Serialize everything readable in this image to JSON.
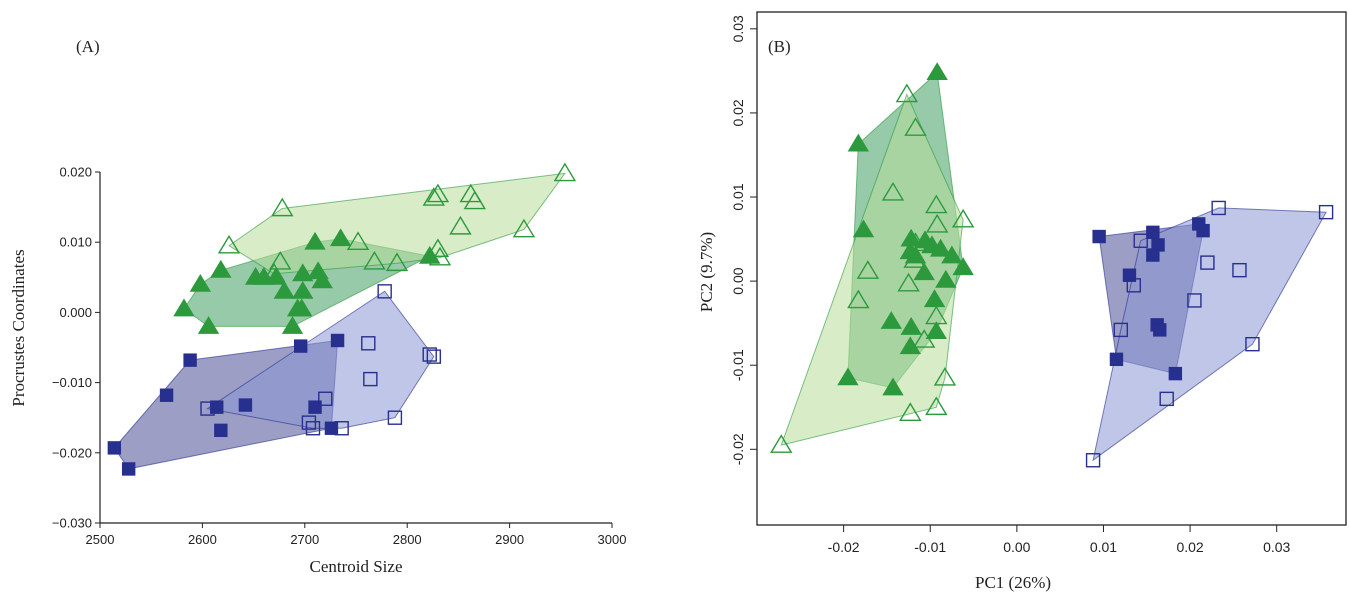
{
  "colors": {
    "green_fill_light": "#b8dc9a",
    "green_fill_dark": "#3f9f62",
    "green_marker": "#2c9a3c",
    "blue_fill_light": "#8b97d3",
    "blue_fill_dark": "#4a4f95",
    "blue_marker": "#272f8f",
    "axis": "#222222"
  },
  "chart_data": [
    {
      "type": "scatter",
      "panel_label": "(A)",
      "title": "",
      "xlabel": "Centroid Size",
      "ylabel": "Procrustes Coordinates",
      "xlim": [
        2500,
        3000
      ],
      "ylim": [
        -0.03,
        0.02
      ],
      "xticks": [
        "2500",
        "2600",
        "2700",
        "2800",
        "2900",
        "3000"
      ],
      "yticks": [
        "−0.030",
        "−0.020",
        "−0.010",
        "0.000",
        "0.010",
        "0.020"
      ],
      "grid": false,
      "series": [
        {
          "marker": "triangle-filled",
          "color": "#2c9a3c",
          "hull_fill": "#3f9f62",
          "points": [
            [
              2582,
              0.0005
            ],
            [
              2598,
              0.004
            ],
            [
              2606,
              -0.002
            ],
            [
              2618,
              0.006
            ],
            [
              2652,
              0.005
            ],
            [
              2660,
              0.005
            ],
            [
              2672,
              0.005
            ],
            [
              2680,
              0.003
            ],
            [
              2688,
              -0.002
            ],
            [
              2693,
              0.0005
            ],
            [
              2697,
              0.0005
            ],
            [
              2698,
              0.0055
            ],
            [
              2698,
              0.003
            ],
            [
              2710,
              0.01
            ],
            [
              2713,
              0.0058
            ],
            [
              2717,
              0.0045
            ],
            [
              2735,
              0.0105
            ],
            [
              2822,
              0.008
            ]
          ]
        },
        {
          "marker": "triangle-open",
          "color": "#2c9a3c",
          "hull_fill": "#b8dc9a",
          "points": [
            [
              2626,
              0.0095
            ],
            [
              2670,
              0.0055
            ],
            [
              2676,
              0.0072
            ],
            [
              2678,
              0.0148
            ],
            [
              2752,
              0.01
            ],
            [
              2768,
              0.0072
            ],
            [
              2790,
              0.007
            ],
            [
              2826,
              0.0163
            ],
            [
              2830,
              0.0168
            ],
            [
              2830,
              0.009
            ],
            [
              2832,
              0.0078
            ],
            [
              2852,
              0.0122
            ],
            [
              2862,
              0.0168
            ],
            [
              2866,
              0.0158
            ],
            [
              2914,
              0.0118
            ],
            [
              2954,
              0.0198
            ]
          ]
        },
        {
          "marker": "square-filled",
          "color": "#272f8f",
          "hull_fill": "#4a4f95",
          "points": [
            [
              2514,
              -0.0193
            ],
            [
              2528,
              -0.0223
            ],
            [
              2565,
              -0.0118
            ],
            [
              2588,
              -0.0068
            ],
            [
              2614,
              -0.0135
            ],
            [
              2618,
              -0.0168
            ],
            [
              2642,
              -0.0132
            ],
            [
              2696,
              -0.0048
            ],
            [
              2710,
              -0.0135
            ],
            [
              2726,
              -0.0165
            ],
            [
              2732,
              -0.004
            ]
          ]
        },
        {
          "marker": "square-open",
          "color": "#272f8f",
          "hull_fill": "#8b97d3",
          "points": [
            [
              2605,
              -0.0137
            ],
            [
              2704,
              -0.0157
            ],
            [
              2708,
              -0.0165
            ],
            [
              2720,
              -0.0123
            ],
            [
              2736,
              -0.0165
            ],
            [
              2762,
              -0.0044
            ],
            [
              2764,
              -0.0095
            ],
            [
              2778,
              0.003
            ],
            [
              2788,
              -0.015
            ],
            [
              2822,
              -0.006
            ],
            [
              2826,
              -0.0063
            ]
          ]
        }
      ]
    },
    {
      "type": "scatter",
      "panel_label": "(B)",
      "title": "",
      "xlabel": "PC1 (26%)",
      "ylabel": "PC2 (9.7%)",
      "xlim": [
        -0.03,
        0.038
      ],
      "ylim": [
        -0.029,
        0.032
      ],
      "xticks": [
        "-0.02",
        "-0.01",
        "0.00",
        "0.01",
        "0.02",
        "0.03"
      ],
      "yticks": [
        "-0.02",
        "-0.01",
        "0.00",
        "0.01",
        "0.02",
        "0.03"
      ],
      "grid": false,
      "series": [
        {
          "marker": "triangle-filled",
          "color": "#2c9a3c",
          "hull_fill": "#3f9f62",
          "points": [
            [
              -0.0092,
              0.0248
            ],
            [
              -0.0183,
              0.0163
            ],
            [
              -0.0177,
              0.0061
            ],
            [
              -0.0122,
              0.005
            ],
            [
              -0.0106,
              0.0048
            ],
            [
              -0.0123,
              0.0035
            ],
            [
              -0.0098,
              0.0042
            ],
            [
              -0.0088,
              0.0038
            ],
            [
              -0.0117,
              0.003
            ],
            [
              -0.0075,
              0.003
            ],
            [
              -0.0107,
              0.001
            ],
            [
              -0.0062,
              0.0016
            ],
            [
              -0.0082,
              0.0001
            ],
            [
              -0.0095,
              -0.0022
            ],
            [
              -0.0145,
              -0.0048
            ],
            [
              -0.0122,
              -0.0055
            ],
            [
              -0.0093,
              -0.006
            ],
            [
              -0.0123,
              -0.0078
            ],
            [
              -0.0195,
              -0.0115
            ],
            [
              -0.0143,
              -0.0127
            ]
          ]
        },
        {
          "marker": "triangle-open",
          "color": "#2c9a3c",
          "hull_fill": "#b8dc9a",
          "points": [
            [
              -0.0127,
              0.0222
            ],
            [
              -0.0117,
              0.0182
            ],
            [
              -0.0143,
              0.0105
            ],
            [
              -0.0093,
              0.009
            ],
            [
              -0.0062,
              0.0073
            ],
            [
              -0.0092,
              0.0067
            ],
            [
              -0.0117,
              0.0045
            ],
            [
              -0.0172,
              0.0012
            ],
            [
              -0.0118,
              0.0025
            ],
            [
              -0.0125,
              -0.0003
            ],
            [
              -0.0183,
              -0.0023
            ],
            [
              -0.0093,
              -0.0042
            ],
            [
              -0.0107,
              -0.007
            ],
            [
              -0.0083,
              -0.0115
            ],
            [
              -0.0123,
              -0.0157
            ],
            [
              -0.0093,
              -0.015
            ],
            [
              -0.0272,
              -0.0195
            ]
          ]
        },
        {
          "marker": "square-filled",
          "color": "#272f8f",
          "hull_fill": "#4a4f95",
          "points": [
            [
              0.0095,
              0.0053
            ],
            [
              0.0157,
              0.0058
            ],
            [
              0.0163,
              0.0043
            ],
            [
              0.0157,
              0.0031
            ],
            [
              0.021,
              0.0068
            ],
            [
              0.0215,
              0.006
            ],
            [
              0.013,
              0.0007
            ],
            [
              0.0162,
              -0.0052
            ],
            [
              0.0165,
              -0.0058
            ],
            [
              0.0115,
              -0.0093
            ],
            [
              0.0183,
              -0.011
            ]
          ]
        },
        {
          "marker": "square-open",
          "color": "#272f8f",
          "hull_fill": "#8b97d3",
          "points": [
            [
              0.0143,
              0.0048
            ],
            [
              0.0233,
              0.0087
            ],
            [
              0.0357,
              0.0082
            ],
            [
              0.022,
              0.0022
            ],
            [
              0.0257,
              0.0013
            ],
            [
              0.0135,
              -0.0005
            ],
            [
              0.0205,
              -0.0023
            ],
            [
              0.012,
              -0.0058
            ],
            [
              0.0272,
              -0.0075
            ],
            [
              0.0173,
              -0.014
            ],
            [
              0.0088,
              -0.0213
            ]
          ]
        }
      ]
    }
  ]
}
